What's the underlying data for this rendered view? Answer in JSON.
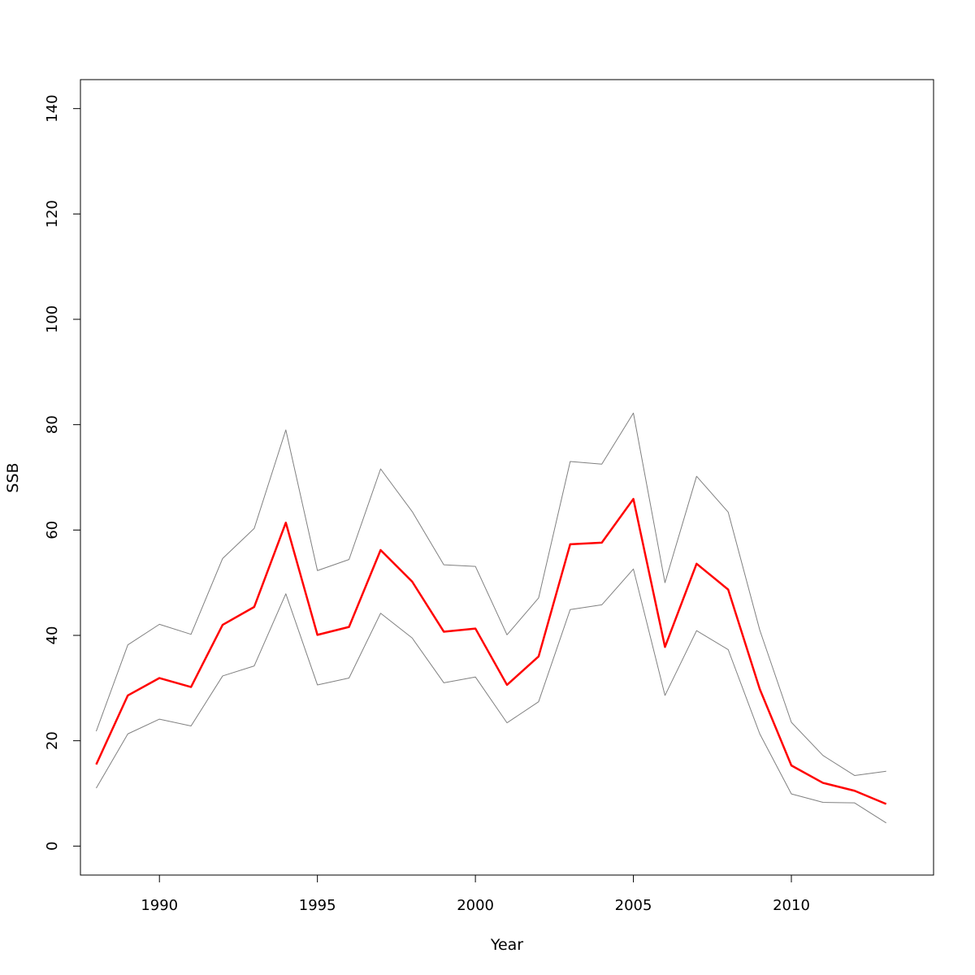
{
  "chart_data": {
    "type": "line",
    "title": "",
    "xlabel": "Year",
    "ylabel": "SSB",
    "xlim": [
      1987.5,
      2014.5
    ],
    "ylim": [
      -5.5,
      145.5
    ],
    "x_ticks": [
      1990,
      1995,
      2000,
      2005,
      2010
    ],
    "y_ticks": [
      0,
      20,
      40,
      60,
      80,
      100,
      120,
      140
    ],
    "grid": false,
    "legend": "none",
    "x": [
      1988,
      1989,
      1990,
      1991,
      1992,
      1993,
      1994,
      1995,
      1996,
      1997,
      1998,
      1999,
      2000,
      2001,
      2002,
      2003,
      2004,
      2005,
      2006,
      2007,
      2008,
      2009,
      2010,
      2011,
      2012,
      2013
    ],
    "series": [
      {
        "color": "#808080",
        "width": 1,
        "values": [
          21.8,
          38.2,
          42.1,
          40.2,
          54.6,
          60.3,
          79.0,
          52.3,
          54.4,
          71.6,
          63.5,
          53.4,
          53.1,
          40.1,
          47.1,
          73.0,
          72.5,
          82.2,
          50.0,
          70.2,
          63.4,
          41.0,
          23.5,
          17.2,
          13.4,
          14.2
        ]
      },
      {
        "color": "#ff0000",
        "width": 2.5,
        "values": [
          15.5,
          28.6,
          31.9,
          30.2,
          42.0,
          45.4,
          61.4,
          40.1,
          41.6,
          56.2,
          50.2,
          40.7,
          41.3,
          30.6,
          36.0,
          57.3,
          57.6,
          65.9,
          37.8,
          53.6,
          48.7,
          29.8,
          15.3,
          12.0,
          10.5,
          8.0
        ]
      },
      {
        "color": "#808080",
        "width": 1,
        "values": [
          11.0,
          21.3,
          24.1,
          22.8,
          32.3,
          34.2,
          47.9,
          30.6,
          31.9,
          44.2,
          39.5,
          31.0,
          32.1,
          23.4,
          27.4,
          44.9,
          45.8,
          52.6,
          28.6,
          40.9,
          37.3,
          21.3,
          9.9,
          8.3,
          8.2,
          4.4
        ]
      }
    ]
  }
}
